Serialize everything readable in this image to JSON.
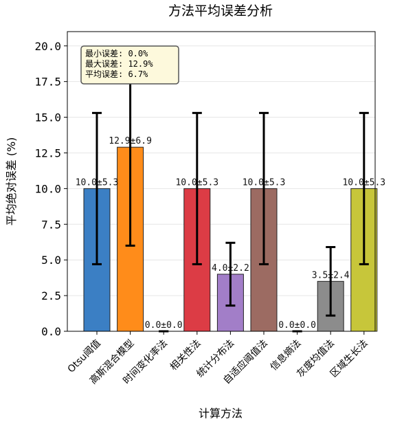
{
  "chart_data": {
    "type": "bar",
    "title": "方法平均误差分析",
    "xlabel": "计算方法",
    "ylabel": "平均绝对误差 (%)",
    "ylim": [
      0,
      21
    ],
    "yticks": [
      0.0,
      2.5,
      5.0,
      7.5,
      10.0,
      12.5,
      15.0,
      17.5,
      20.0
    ],
    "grid": "y",
    "categories": [
      "Otsu阈值",
      "高斯混合模型",
      "时间变化率法",
      "相关性法",
      "统计分布法",
      "自适应阈值法",
      "信息熵法",
      "灰度均值法",
      "区域生长法"
    ],
    "values": [
      10.0,
      12.9,
      0.0,
      10.0,
      4.0,
      10.0,
      0.0,
      3.5,
      10.0
    ],
    "errors": [
      5.3,
      6.9,
      0.0,
      5.3,
      2.2,
      5.3,
      0.0,
      2.4,
      5.3
    ],
    "data_labels": [
      "10.0±5.3",
      "12.9±6.9",
      "0.0±0.0",
      "10.0±5.3",
      "4.0±2.2",
      "10.0±5.3",
      "0.0±0.0",
      "3.5±2.4",
      "10.0±5.3"
    ],
    "colors": [
      "#3b7fc4",
      "#ff8c1a",
      "#2ca02c",
      "#dc3c45",
      "#a27ec8",
      "#9c6b62",
      "#e27bc0",
      "#8c8c8c",
      "#c7c63a"
    ],
    "annotation": {
      "lines": [
        "最小误差: 0.0%",
        "最大误差: 12.9%",
        "平均误差: 6.7%"
      ]
    }
  }
}
